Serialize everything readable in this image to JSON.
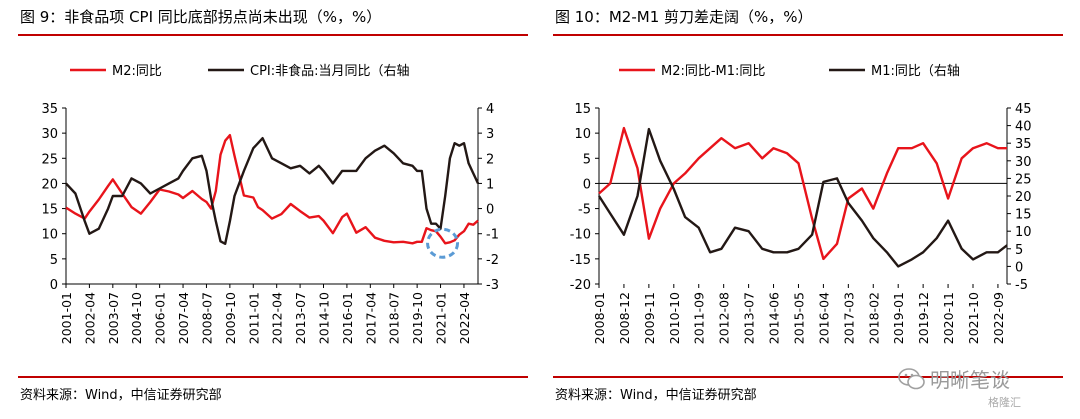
{
  "panels": [
    {
      "title": "图 9：非食品项 CPI 同比底部拐点尚未出现（%，%）",
      "source": "资料来源：Wind，中信证券研究部"
    },
    {
      "title": "图 10：M2-M1 剪刀差走阔（%，%）",
      "source": "资料来源：Wind，中信证券研究部"
    }
  ],
  "watermark": {
    "text": "明晰笔谈",
    "sub": "格隆汇"
  },
  "colors": {
    "red": "#e8141b",
    "black": "#231815",
    "rule": "#c00000",
    "highlight": "#5b9bd5"
  },
  "chart_data": [
    {
      "type": "line",
      "title": "图 9：非食品项 CPI 同比底部拐点尚未出现（%，%）",
      "x": [
        "2001-01",
        "2001-07",
        "2002-01",
        "2002-04",
        "2002-10",
        "2003-04",
        "2003-07",
        "2004-01",
        "2004-07",
        "2005-01",
        "2005-07",
        "2006-01",
        "2006-07",
        "2007-01",
        "2007-04",
        "2007-10",
        "2008-04",
        "2008-07",
        "2008-10",
        "2009-01",
        "2009-04",
        "2009-07",
        "2009-10",
        "2010-01",
        "2010-07",
        "2011-01",
        "2011-04",
        "2011-07",
        "2012-01",
        "2012-07",
        "2013-01",
        "2013-07",
        "2014-01",
        "2014-07",
        "2014-10",
        "2015-04",
        "2015-10",
        "2016-01",
        "2016-07",
        "2017-01",
        "2017-07",
        "2018-01",
        "2018-07",
        "2019-01",
        "2019-07",
        "2019-10",
        "2020-01",
        "2020-04",
        "2020-07",
        "2020-10",
        "2021-01",
        "2021-04",
        "2021-07",
        "2021-10",
        "2022-01",
        "2022-04",
        "2022-07",
        "2022-10",
        "2023-01"
      ],
      "x_ticks": [
        "2001-01",
        "2002-04",
        "2003-07",
        "2004-10",
        "2006-01",
        "2007-04",
        "2008-07",
        "2009-10",
        "2011-01",
        "2012-04",
        "2013-07",
        "2014-10",
        "2016-01",
        "2017-04",
        "2018-07",
        "2019-10",
        "2021-01",
        "2022-04"
      ],
      "series": [
        {
          "name": "M2:同比",
          "axis": "left",
          "color": "#e8141b",
          "values": [
            15.2,
            14.0,
            13.0,
            14.4,
            16.8,
            19.5,
            20.8,
            18.0,
            15.3,
            14.0,
            16.3,
            18.8,
            18.4,
            17.8,
            17.1,
            18.5,
            16.9,
            16.3,
            15.0,
            18.5,
            25.7,
            28.5,
            29.6,
            25.5,
            17.6,
            17.2,
            15.3,
            14.7,
            13.0,
            13.9,
            15.9,
            14.5,
            13.2,
            13.5,
            12.6,
            10.1,
            13.3,
            14.0,
            10.2,
            11.3,
            9.2,
            8.6,
            8.3,
            8.4,
            8.1,
            8.4,
            8.4,
            11.1,
            10.7,
            10.5,
            9.4,
            8.1,
            8.3,
            8.7,
            9.8,
            10.5,
            12.0,
            11.8,
            12.6
          ]
        },
        {
          "name": "CPI:非食品:当月同比",
          "axis": "right",
          "color": "#231815",
          "values": [
            1.0,
            0.6,
            -0.5,
            -1.0,
            -0.8,
            0.0,
            0.5,
            0.5,
            1.2,
            1.0,
            0.6,
            0.8,
            1.0,
            1.2,
            1.5,
            2.0,
            2.1,
            1.5,
            0.4,
            -0.5,
            -1.3,
            -1.4,
            -0.5,
            0.5,
            1.5,
            2.4,
            2.6,
            2.8,
            2.0,
            1.8,
            1.6,
            1.7,
            1.4,
            1.7,
            1.5,
            1.0,
            1.5,
            1.5,
            1.5,
            2.0,
            2.3,
            2.5,
            2.2,
            1.8,
            1.7,
            1.5,
            1.5,
            0.0,
            -0.6,
            -0.6,
            -0.8,
            0.5,
            2.0,
            2.6,
            2.5,
            2.6,
            1.8,
            1.4,
            1.0
          ]
        }
      ],
      "highlight": {
        "x": "2021-01",
        "y_left": 8.3,
        "style": "dashed-circle"
      },
      "ylim_left": [
        0,
        35
      ],
      "ylim_right": [
        -3,
        4
      ],
      "yticks_left": [
        0,
        5,
        10,
        15,
        20,
        25,
        30,
        35
      ],
      "yticks_right": [
        -3,
        -2,
        -1,
        0,
        1,
        2,
        3,
        4
      ],
      "right_axis_note": "右轴",
      "legend": "top",
      "grid": false
    },
    {
      "type": "line",
      "title": "图 10：M2-M1 剪刀差走阔（%，%）",
      "x": [
        "2008-01",
        "2008-06",
        "2008-12",
        "2009-06",
        "2009-11",
        "2010-04",
        "2010-10",
        "2011-03",
        "2011-09",
        "2012-02",
        "2012-07",
        "2013-01",
        "2013-07",
        "2014-01",
        "2014-06",
        "2014-12",
        "2015-05",
        "2015-11",
        "2016-04",
        "2016-10",
        "2017-03",
        "2017-09",
        "2018-02",
        "2018-08",
        "2019-01",
        "2019-07",
        "2019-12",
        "2020-06",
        "2020-11",
        "2021-05",
        "2021-10",
        "2022-04",
        "2022-09",
        "2023-01"
      ],
      "x_ticks": [
        "2008-01",
        "2008-12",
        "2009-11",
        "2010-10",
        "2011-09",
        "2012-08",
        "2013-07",
        "2014-06",
        "2015-05",
        "2016-04",
        "2017-03",
        "2018-02",
        "2019-01",
        "2019-12",
        "2020-11",
        "2021-10",
        "2022-09"
      ],
      "series": [
        {
          "name": "M2:同比-M1:同比",
          "axis": "left",
          "color": "#e8141b",
          "values": [
            -2,
            0,
            11,
            3,
            -11,
            -5,
            0,
            2,
            5,
            7,
            9,
            7,
            8,
            5,
            7,
            6,
            4,
            -7,
            -15,
            -12,
            -3,
            -1,
            -5,
            2,
            7,
            7,
            8,
            4,
            -3,
            5,
            7,
            8,
            7,
            7
          ]
        },
        {
          "name": "M1:同比",
          "axis": "right",
          "color": "#231815",
          "values": [
            20,
            15,
            9,
            20,
            39,
            30,
            22,
            14,
            11,
            4,
            5,
            11,
            10,
            5,
            4,
            4,
            5,
            9,
            24,
            25,
            18,
            13,
            8,
            4,
            0,
            2,
            4,
            8,
            13,
            5,
            2,
            4,
            4,
            6
          ]
        }
      ],
      "ylim_left": [
        -20,
        15
      ],
      "ylim_right": [
        -5,
        45
      ],
      "yticks_left": [
        -20,
        -15,
        -10,
        -5,
        0,
        5,
        10,
        15
      ],
      "yticks_right": [
        -5,
        0,
        5,
        10,
        15,
        20,
        25,
        30,
        35,
        40,
        45
      ],
      "right_axis_note": "右轴",
      "legend": "top",
      "grid": false
    }
  ]
}
